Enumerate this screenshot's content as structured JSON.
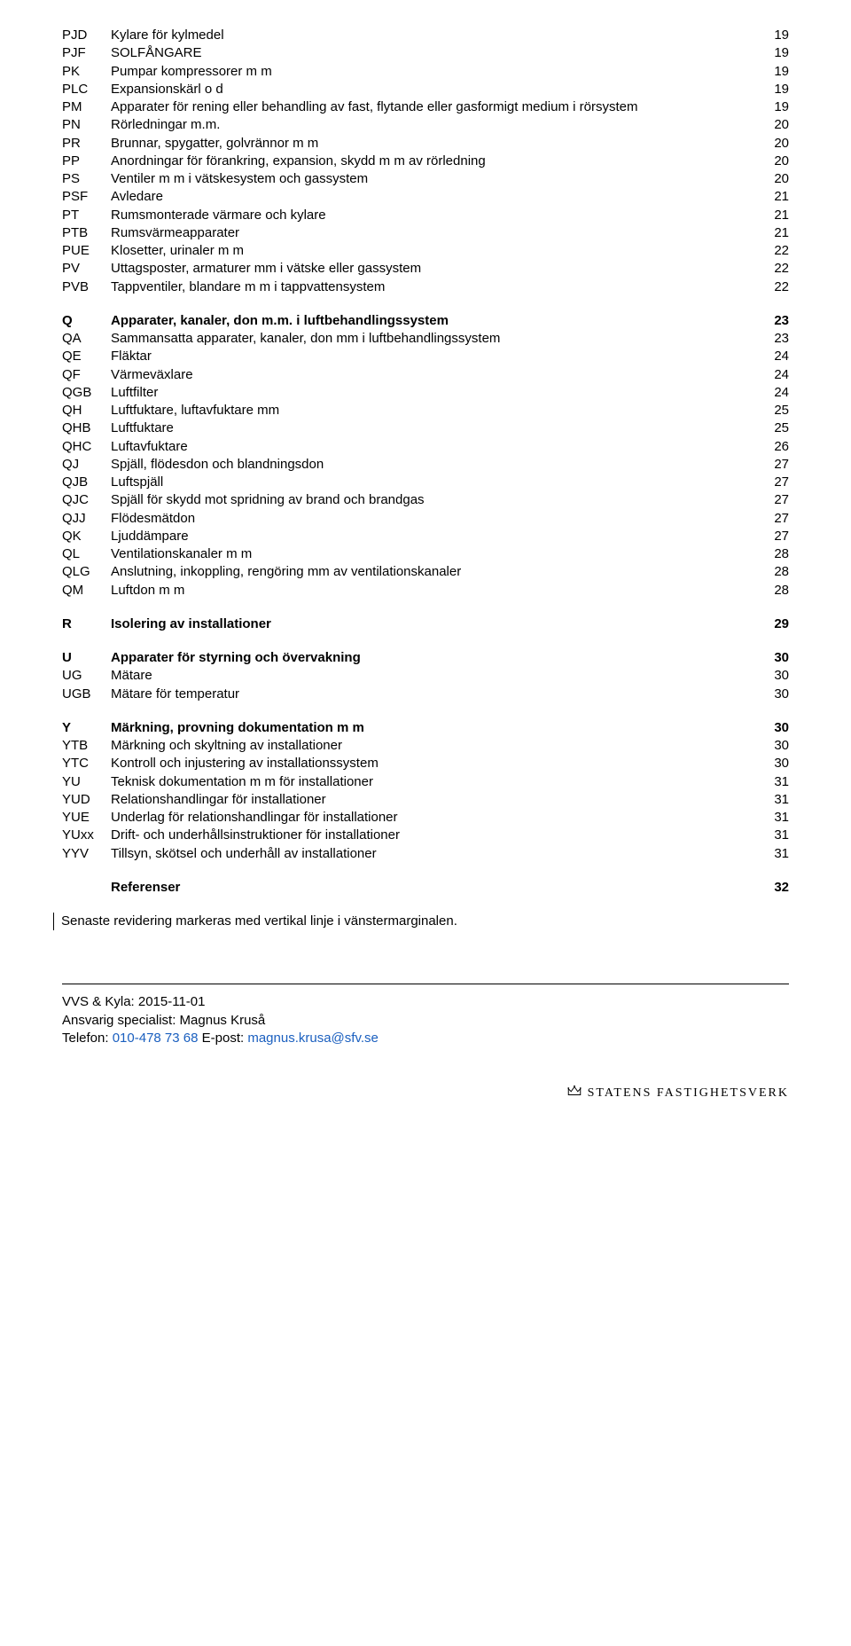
{
  "sections": [
    {
      "gapBefore": false,
      "rows": [
        {
          "code": "PJD",
          "title": "Kylare för kylmedel",
          "page": "19",
          "bold": false
        },
        {
          "code": "PJF",
          "title": "SOLFÅNGARE",
          "page": "19",
          "bold": false
        },
        {
          "code": "PK",
          "title": "Pumpar kompressorer m m",
          "page": "19",
          "bold": false
        },
        {
          "code": "PLC",
          "title": "Expansionskärl o d",
          "page": "19",
          "bold": false
        },
        {
          "code": "PM",
          "title": "Apparater för rening eller behandling av fast, flytande eller gasformigt medium i rörsystem",
          "page": "19",
          "bold": false
        },
        {
          "code": "PN",
          "title": "Rörledningar m.m.",
          "page": "20",
          "bold": false
        },
        {
          "code": "PR",
          "title": "Brunnar, spygatter, golvrännor m m",
          "page": "20",
          "bold": false
        },
        {
          "code": "PP",
          "title": "Anordningar för förankring, expansion, skydd m m av rörledning",
          "page": "20",
          "bold": false
        },
        {
          "code": "PS",
          "title": "Ventiler m m i vätskesystem och gassystem",
          "page": "20",
          "bold": false
        },
        {
          "code": "PSF",
          "title": "Avledare",
          "page": "21",
          "bold": false
        },
        {
          "code": "PT",
          "title": "Rumsmonterade värmare och kylare",
          "page": "21",
          "bold": false
        },
        {
          "code": "PTB",
          "title": "Rumsvärmeapparater",
          "page": "21",
          "bold": false
        },
        {
          "code": "PUE",
          "title": "Klosetter, urinaler m m",
          "page": "22",
          "bold": false
        },
        {
          "code": "PV",
          "title": "Uttagsposter, armaturer mm i vätske eller gassystem",
          "page": "22",
          "bold": false
        },
        {
          "code": "PVB",
          "title": "Tappventiler, blandare m m i tappvattensystem",
          "page": "22",
          "bold": false
        }
      ]
    },
    {
      "gapBefore": true,
      "rows": [
        {
          "code": "Q",
          "title": "Apparater, kanaler, don m.m. i luftbehandlingssystem",
          "page": "23",
          "bold": true
        },
        {
          "code": "QA",
          "title": "Sammansatta apparater, kanaler, don mm i luftbehandlingssystem",
          "page": "23",
          "bold": false
        },
        {
          "code": "QE",
          "title": "Fläktar",
          "page": "24",
          "bold": false
        },
        {
          "code": "QF",
          "title": "Värmeväxlare",
          "page": "24",
          "bold": false
        },
        {
          "code": "QGB",
          "title": "Luftfilter",
          "page": "24",
          "bold": false
        },
        {
          "code": "QH",
          "title": "Luftfuktare, luftavfuktare mm",
          "page": "25",
          "bold": false
        },
        {
          "code": "QHB",
          "title": "Luftfuktare",
          "page": "25",
          "bold": false
        },
        {
          "code": "QHC",
          "title": "Luftavfuktare",
          "page": "26",
          "bold": false
        },
        {
          "code": "QJ",
          "title": "Spjäll, flödesdon och blandningsdon",
          "page": "27",
          "bold": false
        },
        {
          "code": "QJB",
          "title": "Luftspjäll",
          "page": "27",
          "bold": false
        },
        {
          "code": "QJC",
          "title": "Spjäll för skydd mot spridning av brand och brandgas",
          "page": "27",
          "bold": false
        },
        {
          "code": "QJJ",
          "title": "Flödesmätdon",
          "page": "27",
          "bold": false
        },
        {
          "code": "QK",
          "title": "Ljuddämpare",
          "page": "27",
          "bold": false
        },
        {
          "code": "QL",
          "title": "Ventilationskanaler m m",
          "page": "28",
          "bold": false
        },
        {
          "code": "QLG",
          "title": "Anslutning, inkoppling, rengöring mm av ventilationskanaler",
          "page": "28",
          "bold": false
        },
        {
          "code": "QM",
          "title": "Luftdon m m",
          "page": "28",
          "bold": false
        }
      ]
    },
    {
      "gapBefore": true,
      "rows": [
        {
          "code": "R",
          "title": "Isolering av installationer",
          "page": "29",
          "bold": true
        }
      ]
    },
    {
      "gapBefore": true,
      "rows": [
        {
          "code": "U",
          "title": "Apparater för styrning och övervakning",
          "page": "30",
          "bold": true
        },
        {
          "code": "UG",
          "title": "Mätare",
          "page": "30",
          "bold": false
        },
        {
          "code": "UGB",
          "title": "Mätare för temperatur",
          "page": "30",
          "bold": false
        }
      ]
    },
    {
      "gapBefore": true,
      "rows": [
        {
          "code": "Y",
          "title": "Märkning, provning dokumentation m m",
          "page": "30",
          "bold": true
        },
        {
          "code": "YTB",
          "title": "Märkning och skyltning av installationer",
          "page": "30",
          "bold": false
        },
        {
          "code": "YTC",
          "title": "Kontroll och injustering av installationssystem",
          "page": "30",
          "bold": false
        },
        {
          "code": "YU",
          "title": "Teknisk dokumentation m m för installationer",
          "page": "31",
          "bold": false
        },
        {
          "code": "YUD",
          "title": "Relationshandlingar för installationer",
          "page": "31",
          "bold": false
        },
        {
          "code": "YUE",
          "title": "Underlag för relationshandlingar för installationer",
          "page": "31",
          "bold": false
        },
        {
          "code": "YUxx",
          "title": "Drift- och underhållsinstruktioner för installationer",
          "page": "31",
          "bold": false
        },
        {
          "code": "YYV",
          "title": "Tillsyn, skötsel och underhåll av installationer",
          "page": "31",
          "bold": false
        }
      ]
    },
    {
      "gapBefore": true,
      "rows": [
        {
          "code": "",
          "title": "Referenser",
          "page": "32",
          "bold": true
        }
      ]
    }
  ],
  "revision_note": "Senaste revidering markeras med vertikal linje i vänstermarginalen.",
  "footer": {
    "line1": "VVS & Kyla: 2015-11-01",
    "line2": "Ansvarig specialist: Magnus Kruså",
    "phone_label": "Telefon: ",
    "phone": "010-478 73 68",
    "email_label": " E-post: ",
    "email": "magnus.krusa@sfv.se"
  },
  "logo_text": "STATENS FASTIGHETSVERK"
}
